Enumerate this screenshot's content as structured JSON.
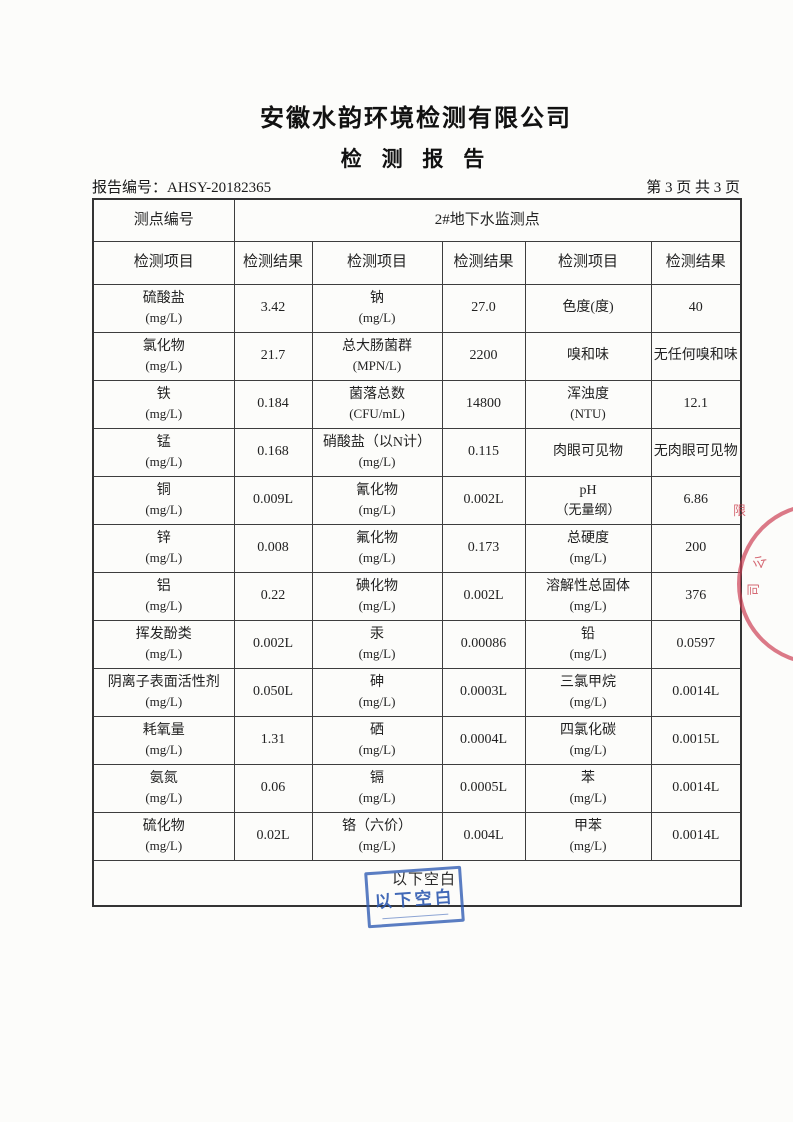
{
  "header": {
    "company": "安徽水韵环境检测有限公司",
    "title": "检 测 报 告",
    "report_no": "报告编号：AHSY-20182365",
    "page_info": "第 3 页 共 3 页"
  },
  "table": {
    "point_label": "测点编号",
    "point_value": "2#地下水监测点",
    "col_headers": [
      "检测项目",
      "检测结果",
      "检测项目",
      "检测结果",
      "检测项目",
      "检测结果"
    ],
    "rows": [
      [
        {
          "item": "硫酸盐",
          "unit": "(mg/L)",
          "result": "3.42"
        },
        {
          "item": "钠",
          "unit": "(mg/L)",
          "result": "27.0"
        },
        {
          "item": "色度(度)",
          "unit": "",
          "result": "40"
        }
      ],
      [
        {
          "item": "氯化物",
          "unit": "(mg/L)",
          "result": "21.7"
        },
        {
          "item": "总大肠菌群",
          "unit": "(MPN/L)",
          "result": "2200"
        },
        {
          "item": "嗅和味",
          "unit": "",
          "result": "无任何嗅和味"
        }
      ],
      [
        {
          "item": "铁",
          "unit": "(mg/L)",
          "result": "0.184"
        },
        {
          "item": "菌落总数",
          "unit": "(CFU/mL)",
          "result": "14800"
        },
        {
          "item": "浑浊度",
          "unit": "(NTU)",
          "result": "12.1"
        }
      ],
      [
        {
          "item": "锰",
          "unit": "(mg/L)",
          "result": "0.168"
        },
        {
          "item": "硝酸盐（以N计）",
          "unit": "(mg/L)",
          "result": "0.115"
        },
        {
          "item": "肉眼可见物",
          "unit": "",
          "result": "无肉眼可见物"
        }
      ],
      [
        {
          "item": "铜",
          "unit": "(mg/L)",
          "result": "0.009L"
        },
        {
          "item": "氰化物",
          "unit": "(mg/L)",
          "result": "0.002L"
        },
        {
          "item": "pH",
          "unit": "（无量纲）",
          "result": "6.86"
        }
      ],
      [
        {
          "item": "锌",
          "unit": "(mg/L)",
          "result": "0.008"
        },
        {
          "item": "氟化物",
          "unit": "(mg/L)",
          "result": "0.173"
        },
        {
          "item": "总硬度",
          "unit": "(mg/L)",
          "result": "200"
        }
      ],
      [
        {
          "item": "铝",
          "unit": "(mg/L)",
          "result": "0.22"
        },
        {
          "item": "碘化物",
          "unit": "(mg/L)",
          "result": "0.002L"
        },
        {
          "item": "溶解性总固体",
          "unit": "(mg/L)",
          "result": "376"
        }
      ],
      [
        {
          "item": "挥发酚类",
          "unit": "(mg/L)",
          "result": "0.002L"
        },
        {
          "item": "汞",
          "unit": "(mg/L)",
          "result": "0.00086"
        },
        {
          "item": "铅",
          "unit": "(mg/L)",
          "result": "0.0597"
        }
      ],
      [
        {
          "item": "阴离子表面活性剂",
          "unit": "(mg/L)",
          "result": "0.050L"
        },
        {
          "item": "砷",
          "unit": "(mg/L)",
          "result": "0.0003L"
        },
        {
          "item": "三氯甲烷",
          "unit": "(mg/L)",
          "result": "0.0014L"
        }
      ],
      [
        {
          "item": "耗氧量",
          "unit": "(mg/L)",
          "result": "1.31"
        },
        {
          "item": "硒",
          "unit": "(mg/L)",
          "result": "0.0004L"
        },
        {
          "item": "四氯化碳",
          "unit": "(mg/L)",
          "result": "0.0015L"
        }
      ],
      [
        {
          "item": "氨氮",
          "unit": "(mg/L)",
          "result": "0.06"
        },
        {
          "item": "镉",
          "unit": "(mg/L)",
          "result": "0.0005L"
        },
        {
          "item": "苯",
          "unit": "(mg/L)",
          "result": "0.0014L"
        }
      ],
      [
        {
          "item": "硫化物",
          "unit": "(mg/L)",
          "result": "0.02L"
        },
        {
          "item": "铬（六价）",
          "unit": "(mg/L)",
          "result": "0.004L"
        },
        {
          "item": "甲苯",
          "unit": "(mg/L)",
          "result": "0.0014L"
        }
      ]
    ],
    "footer_note": "以下空白"
  },
  "stamps": {
    "blue_stamp_text": "以下空白",
    "blue_color": "#2e5ab0",
    "red_seal_chars": [
      "限",
      "公",
      "司"
    ],
    "red_color": "#cd4156"
  }
}
